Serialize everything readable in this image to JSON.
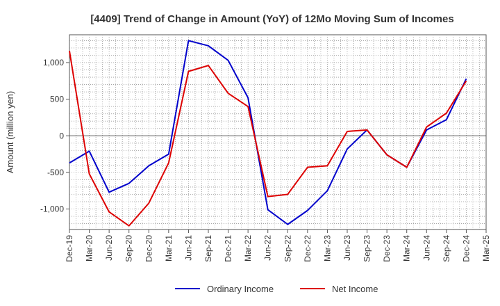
{
  "chart_data": {
    "type": "line",
    "title": "[4409]  Trend of Change in Amount (YoY) of 12Mo Moving Sum of Incomes",
    "xlabel": "",
    "ylabel": "Amount (million yen)",
    "categories": [
      "Dec-19",
      "Mar-20",
      "Jun-20",
      "Sep-20",
      "Dec-20",
      "Mar-21",
      "Jun-21",
      "Sep-21",
      "Dec-21",
      "Mar-22",
      "Jun-22",
      "Sep-22",
      "Dec-22",
      "Mar-23",
      "Jun-23",
      "Sep-23",
      "Dec-23",
      "Mar-24",
      "Jun-24",
      "Sep-24",
      "Dec-24",
      "Mar-25"
    ],
    "ylim": [
      -1280,
      1380
    ],
    "yticks": [
      -1000,
      -500,
      0,
      500,
      1000
    ],
    "ytick_labels": [
      "-1,000",
      "-500",
      "0",
      "500",
      "1,000"
    ],
    "grid": true,
    "legend_position": "bottom-center",
    "series": [
      {
        "name": "Ordinary Income",
        "color": "#0000cc",
        "values": [
          -370,
          -210,
          -770,
          -650,
          -410,
          -250,
          1300,
          1230,
          1030,
          520,
          -1010,
          -1210,
          -1020,
          -750,
          -180,
          80,
          -260,
          -430,
          80,
          220,
          780,
          null
        ]
      },
      {
        "name": "Net Income",
        "color": "#dd0000",
        "values": [
          1160,
          -520,
          -1040,
          -1230,
          -920,
          -370,
          880,
          960,
          580,
          400,
          -830,
          -800,
          -430,
          -410,
          60,
          80,
          -260,
          -430,
          120,
          310,
          750,
          null
        ]
      }
    ]
  }
}
